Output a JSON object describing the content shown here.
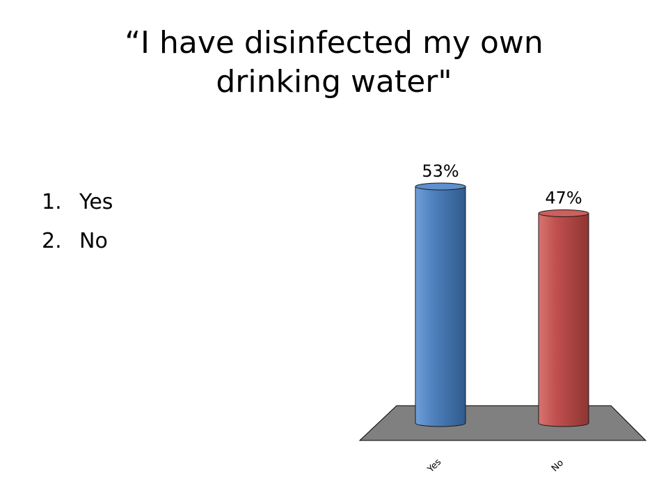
{
  "title": "“I have disinfected my own drinking water\"",
  "answer_options": [
    {
      "number": "1.",
      "label": "Yes"
    },
    {
      "number": "2.",
      "label": "No"
    }
  ],
  "colors": {
    "yes_bar": "#4f81bd",
    "no_bar": "#c0504d",
    "floor": "#808080"
  },
  "chart_data": {
    "type": "bar",
    "categories": [
      "Yes",
      "No"
    ],
    "values": [
      53,
      47
    ],
    "data_labels": [
      "53%",
      "47%"
    ],
    "ylim": [
      0,
      60
    ],
    "grid": false,
    "legend": "none"
  }
}
